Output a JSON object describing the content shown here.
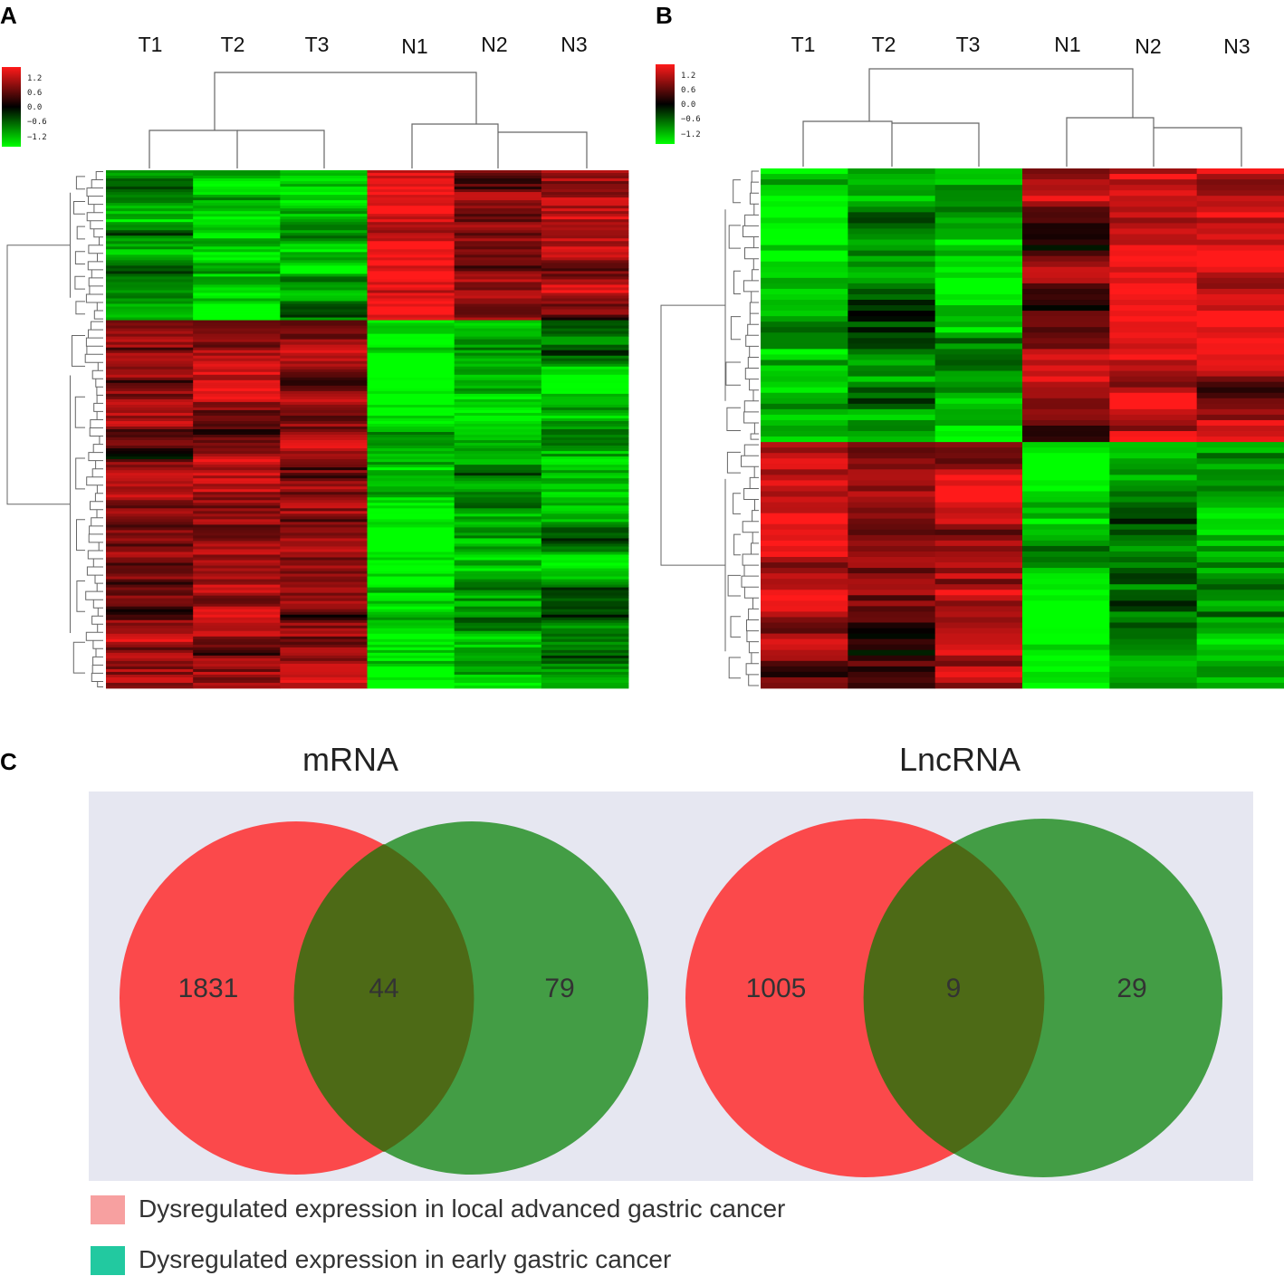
{
  "panels": {
    "a": "A",
    "b": "B",
    "c": "C"
  },
  "colors": {
    "high": "#ff1a1a",
    "mid": "#000000",
    "low": "#00ff00",
    "venn_a": "#ff2626",
    "venn_b": "#1e8c1e",
    "venn_overlap": "#4d6a16",
    "legend_a": "#f7a0a0",
    "legend_b": "#22c9a0",
    "venn_bg": "#e6e7f1"
  },
  "chart_data": [
    {
      "type": "heatmap",
      "panel": "A",
      "columns": [
        "T1",
        "T2",
        "T3",
        "N1",
        "N2",
        "N3"
      ],
      "color_scale": {
        "ticks": [
          "1.2",
          "0.6",
          "0.0",
          "−0.6",
          "−1.2"
        ],
        "min": -1.2,
        "max": 1.2
      },
      "clusters": [
        {
          "name": "upper",
          "rows": 55,
          "values": [
            -0.7,
            -0.9,
            -0.8,
            1.1,
            0.7,
            0.6
          ]
        },
        {
          "name": "lower",
          "rows": 135,
          "values": [
            0.6,
            0.8,
            0.7,
            -1.1,
            -0.8,
            -0.7
          ]
        }
      ]
    },
    {
      "type": "heatmap",
      "panel": "B",
      "columns": [
        "T1",
        "T2",
        "T3",
        "N1",
        "N2",
        "N3"
      ],
      "color_scale": {
        "ticks": [
          "1.2",
          "0.6",
          "0.0",
          "−0.6",
          "−1.2"
        ],
        "min": -1.2,
        "max": 1.2
      },
      "clusters": [
        {
          "name": "upper",
          "rows": 50,
          "values": [
            -1.0,
            -0.6,
            -0.8,
            0.6,
            0.9,
            0.8
          ]
        },
        {
          "name": "lower",
          "rows": 45,
          "values": [
            0.8,
            0.6,
            0.8,
            -0.9,
            -0.6,
            -0.8
          ]
        }
      ]
    },
    {
      "type": "venn",
      "title": "mRNA",
      "only_a": "1831",
      "both": "44",
      "only_b": "79"
    },
    {
      "type": "venn",
      "title": "LncRNA",
      "only_a": "1005",
      "both": "9",
      "only_b": "29"
    }
  ],
  "legend": [
    {
      "label": "Dysregulated expression in local advanced gastric cancer"
    },
    {
      "label": "Dysregulated expression in early gastric cancer"
    }
  ]
}
